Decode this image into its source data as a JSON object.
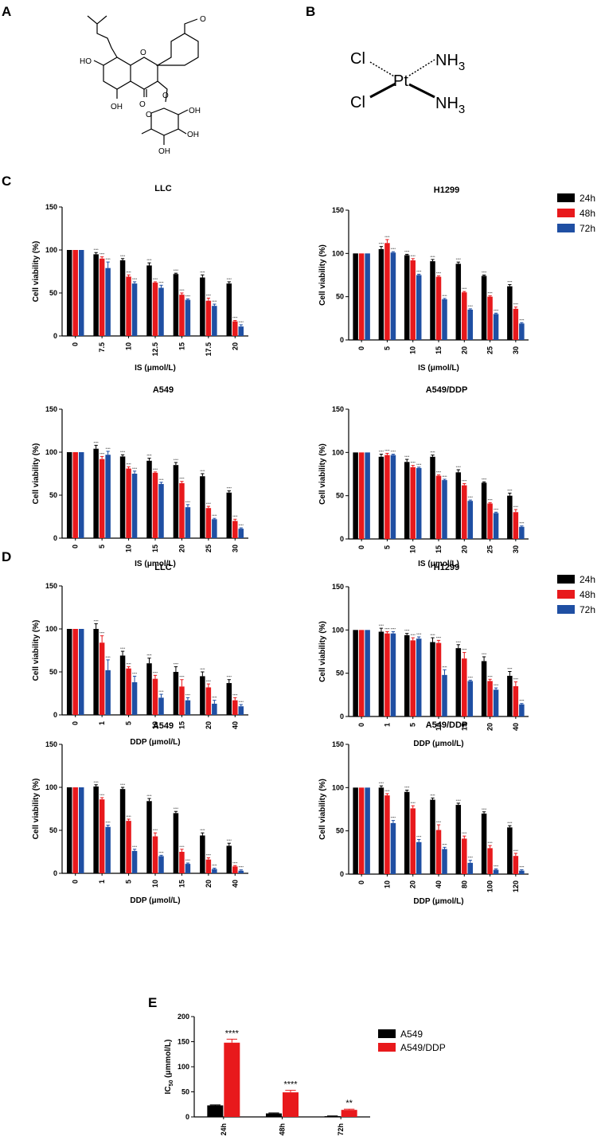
{
  "panels": {
    "A": "A",
    "B": "B",
    "C": "C",
    "D": "D",
    "E": "E"
  },
  "colors": {
    "24h": "#000000",
    "48h": "#e8191c",
    "72h": "#1f4fa3"
  },
  "chem_is": {
    "oh1": "HO",
    "oh2": "OH",
    "carbonyl": "O",
    "ring_o": "O",
    "ether_o": "O",
    "ome": "O",
    "sug_o": "O",
    "sug_oh1": "OH",
    "sug_oh2": "OH",
    "sug_oh3": "OH"
  },
  "chem_ddp": {
    "cl1": "Cl",
    "cl2": "Cl",
    "pt": "Pt",
    "nh3a": "NH3",
    "nh3b": "NH3"
  },
  "legend_c": [
    "24h",
    "48h",
    "72h"
  ],
  "legend_d": [
    "24h",
    "48h",
    "72h"
  ],
  "legend_e": [
    "A549",
    "A549/DDP"
  ],
  "chart_data": [
    {
      "id": "C-LLC",
      "type": "bar",
      "title": "LLC",
      "xlabel": "IS (μmol/L)",
      "ylabel": "Cell viability (%)",
      "ylim": [
        0,
        150
      ],
      "yticks": [
        "0",
        "50",
        "100",
        "150"
      ],
      "categories": [
        "0",
        "7.5",
        "10",
        "12.5",
        "15",
        "17.5",
        "20"
      ],
      "series": [
        {
          "name": "24h",
          "values": [
            100,
            95,
            88,
            82,
            72,
            68,
            61
          ],
          "errors": [
            0,
            2,
            2,
            3,
            1,
            3,
            2
          ]
        },
        {
          "name": "48h",
          "values": [
            100,
            90,
            69,
            62,
            48,
            41,
            17
          ],
          "errors": [
            0,
            2,
            2,
            1,
            2,
            3,
            1
          ]
        },
        {
          "name": "72h",
          "values": [
            100,
            79,
            61,
            56,
            42,
            35,
            11
          ],
          "errors": [
            0,
            7,
            2,
            3,
            1,
            2,
            2
          ]
        }
      ],
      "sig": [
        "",
        "****",
        "****",
        "****",
        "****",
        "****",
        "****"
      ]
    },
    {
      "id": "C-H1299",
      "type": "bar",
      "title": "H1299",
      "xlabel": "IS (μmol/L)",
      "ylabel": "Cell viability (%)",
      "ylim": [
        0,
        150
      ],
      "yticks": [
        "0",
        "50",
        "100",
        "150"
      ],
      "categories": [
        "0",
        "5",
        "10",
        "15",
        "20",
        "25",
        "30"
      ],
      "series": [
        {
          "name": "24h",
          "values": [
            100,
            105,
            98,
            91,
            88,
            74,
            62
          ],
          "errors": [
            0,
            3,
            1,
            2,
            2,
            1,
            2
          ]
        },
        {
          "name": "48h",
          "values": [
            100,
            112,
            92,
            73,
            55,
            50,
            36
          ],
          "errors": [
            0,
            4,
            2,
            1,
            1,
            1,
            2
          ]
        },
        {
          "name": "72h",
          "values": [
            100,
            101,
            75,
            47,
            35,
            30,
            19
          ],
          "errors": [
            0,
            1,
            1,
            1,
            1,
            1,
            1
          ]
        }
      ],
      "sig": [
        "",
        "****",
        "****",
        "****",
        "****",
        "****",
        "****"
      ]
    },
    {
      "id": "C-A549",
      "type": "bar",
      "title": "A549",
      "xlabel": "IS (μmol/L)",
      "ylabel": "Cell viability (%)",
      "ylim": [
        0,
        150
      ],
      "yticks": [
        "0",
        "50",
        "100",
        "150"
      ],
      "categories": [
        "0",
        "5",
        "10",
        "15",
        "20",
        "25",
        "30"
      ],
      "series": [
        {
          "name": "24h",
          "values": [
            100,
            104,
            95,
            90,
            85,
            72,
            53
          ],
          "errors": [
            0,
            4,
            2,
            3,
            3,
            3,
            2
          ]
        },
        {
          "name": "48h",
          "values": [
            100,
            92,
            81,
            76,
            64,
            35,
            20
          ],
          "errors": [
            0,
            3,
            2,
            1,
            2,
            2,
            2
          ]
        },
        {
          "name": "72h",
          "values": [
            100,
            97,
            75,
            63,
            36,
            22,
            11
          ],
          "errors": [
            0,
            4,
            3,
            2,
            3,
            1,
            1
          ]
        }
      ],
      "sig": [
        "",
        "****",
        "****",
        "****",
        "****",
        "****",
        "****"
      ]
    },
    {
      "id": "C-A549DDP",
      "type": "bar",
      "title": "A549/DDP",
      "xlabel": "IS (μmol/L)",
      "ylabel": "Cell viability (%)",
      "ylim": [
        0,
        150
      ],
      "yticks": [
        "0",
        "50",
        "100",
        "150"
      ],
      "categories": [
        "0",
        "5",
        "10",
        "15",
        "20",
        "25",
        "30"
      ],
      "series": [
        {
          "name": "24h",
          "values": [
            100,
            95,
            89,
            95,
            77,
            65,
            50
          ],
          "errors": [
            0,
            3,
            3,
            2,
            3,
            1,
            3
          ]
        },
        {
          "name": "48h",
          "values": [
            100,
            97,
            83,
            73,
            62,
            41,
            31
          ],
          "errors": [
            0,
            2,
            2,
            1,
            2,
            1,
            3
          ]
        },
        {
          "name": "72h",
          "values": [
            100,
            97,
            82,
            68,
            44,
            30,
            14
          ],
          "errors": [
            0,
            1,
            1,
            1,
            1,
            1,
            1
          ]
        }
      ],
      "sig": [
        "",
        "****",
        "****",
        "****",
        "****",
        "****",
        "****"
      ]
    },
    {
      "id": "D-LLC",
      "type": "bar",
      "title": "LLC",
      "xlabel": "DDP (μmol/L)",
      "ylabel": "Cell viability (%)",
      "ylim": [
        0,
        150
      ],
      "yticks": [
        "0",
        "50",
        "100",
        "150"
      ],
      "categories": [
        "0",
        "1",
        "5",
        "10",
        "15",
        "20",
        "40"
      ],
      "series": [
        {
          "name": "24h",
          "values": [
            100,
            100,
            69,
            60,
            50,
            45,
            37
          ],
          "errors": [
            0,
            6,
            5,
            6,
            6,
            5,
            4
          ]
        },
        {
          "name": "48h",
          "values": [
            100,
            84,
            54,
            42,
            33,
            32,
            17
          ],
          "errors": [
            0,
            8,
            2,
            4,
            8,
            4,
            3
          ]
        },
        {
          "name": "72h",
          "values": [
            100,
            52,
            38,
            20,
            17,
            13,
            10
          ],
          "errors": [
            0,
            12,
            7,
            4,
            3,
            4,
            2
          ]
        }
      ],
      "sig": [
        "",
        "****",
        "****",
        "****",
        "****",
        "****",
        "****"
      ]
    },
    {
      "id": "D-H1299",
      "type": "bar",
      "title": "H1299",
      "xlabel": "DDP (μmol/L)",
      "ylabel": "Cell viability (%)",
      "ylim": [
        0,
        150
      ],
      "yticks": [
        "0",
        "50",
        "100",
        "150"
      ],
      "categories": [
        "0",
        "1",
        "5",
        "10",
        "15",
        "20",
        "40"
      ],
      "series": [
        {
          "name": "24h",
          "values": [
            100,
            98,
            94,
            86,
            79,
            64,
            47
          ],
          "errors": [
            0,
            4,
            2,
            5,
            4,
            5,
            5
          ]
        },
        {
          "name": "48h",
          "values": [
            100,
            96,
            88,
            85,
            67,
            41,
            35
          ],
          "errors": [
            0,
            2,
            3,
            3,
            7,
            2,
            5
          ]
        },
        {
          "name": "72h",
          "values": [
            100,
            96,
            90,
            48,
            41,
            31,
            14
          ],
          "errors": [
            0,
            2,
            2,
            6,
            1,
            2,
            1
          ]
        }
      ],
      "sig": [
        "",
        "****",
        "****",
        "****",
        "****",
        "****",
        "****"
      ]
    },
    {
      "id": "D-A549",
      "type": "bar",
      "title": "A549",
      "xlabel": "DDP (μmol/L)",
      "ylabel": "Cell viability (%)",
      "ylim": [
        0,
        150
      ],
      "yticks": [
        "0",
        "50",
        "100",
        "150"
      ],
      "categories": [
        "0",
        "1",
        "5",
        "10",
        "15",
        "20",
        "40"
      ],
      "series": [
        {
          "name": "24h",
          "values": [
            100,
            101,
            98,
            84,
            70,
            44,
            32
          ],
          "errors": [
            0,
            2,
            2,
            3,
            2,
            3,
            3
          ]
        },
        {
          "name": "48h",
          "values": [
            100,
            86,
            61,
            43,
            25,
            16,
            8
          ],
          "errors": [
            0,
            2,
            2,
            4,
            3,
            2,
            1
          ]
        },
        {
          "name": "72h",
          "values": [
            100,
            54,
            26,
            20,
            11,
            5,
            3
          ],
          "errors": [
            0,
            2,
            2,
            1,
            1,
            1,
            1
          ]
        }
      ],
      "sig": [
        "",
        "****",
        "****",
        "****",
        "****",
        "****",
        "****"
      ]
    },
    {
      "id": "D-A549DDP",
      "type": "bar",
      "title": "A549/DDP",
      "xlabel": "DDP (μmol/L)",
      "ylabel": "Cell viability (%)",
      "ylim": [
        0,
        150
      ],
      "yticks": [
        "0",
        "50",
        "100",
        "150"
      ],
      "categories": [
        "0",
        "10",
        "20",
        "40",
        "80",
        "100",
        "120"
      ],
      "series": [
        {
          "name": "24h",
          "values": [
            100,
            100,
            95,
            86,
            80,
            70,
            54
          ],
          "errors": [
            0,
            2,
            2,
            2,
            2,
            2,
            2
          ]
        },
        {
          "name": "48h",
          "values": [
            100,
            91,
            76,
            51,
            41,
            30,
            21
          ],
          "errors": [
            0,
            2,
            3,
            6,
            3,
            3,
            3
          ]
        },
        {
          "name": "72h",
          "values": [
            100,
            59,
            37,
            29,
            13,
            5,
            4
          ],
          "errors": [
            0,
            3,
            3,
            2,
            3,
            1,
            1
          ]
        }
      ],
      "sig": [
        "",
        "****",
        "****",
        "****",
        "****",
        "****",
        "****"
      ]
    },
    {
      "id": "E",
      "type": "bar",
      "title": "",
      "xlabel": "",
      "ylabel": "IC50 (μmmol/L)",
      "ylim": [
        0,
        200
      ],
      "yticks": [
        "0",
        "50",
        "100",
        "150",
        "200"
      ],
      "categories": [
        "24h",
        "48h",
        "72h"
      ],
      "series": [
        {
          "name": "A549",
          "values": [
            23,
            7,
            1.5
          ],
          "errors": [
            1,
            1,
            0.5
          ]
        },
        {
          "name": "A549/DDP",
          "values": [
            148,
            49,
            14
          ],
          "errors": [
            7,
            4,
            1.5
          ]
        }
      ],
      "sig": [
        "****",
        "****",
        "**"
      ]
    }
  ]
}
